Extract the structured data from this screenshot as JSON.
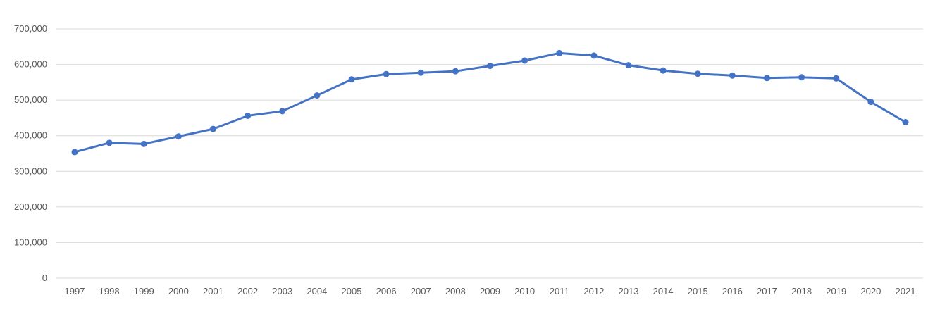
{
  "chart_data": {
    "type": "line",
    "title": "",
    "xlabel": "",
    "ylabel": "",
    "categories": [
      "1997",
      "1998",
      "1999",
      "2000",
      "2001",
      "2002",
      "2003",
      "2004",
      "2005",
      "2006",
      "2007",
      "2008",
      "2009",
      "2010",
      "2011",
      "2012",
      "2013",
      "2014",
      "2015",
      "2016",
      "2017",
      "2018",
      "2019",
      "2020",
      "2021"
    ],
    "series": [
      {
        "values": [
          354000,
          380000,
          377000,
          398000,
          419000,
          456000,
          469000,
          513000,
          558000,
          573000,
          577000,
          581000,
          596000,
          611000,
          632000,
          625000,
          598000,
          583000,
          574000,
          569000,
          562000,
          564000,
          561000,
          495000,
          438000
        ]
      }
    ],
    "ylim": [
      0,
      700000
    ],
    "yticks": [
      0,
      100000,
      200000,
      300000,
      400000,
      500000,
      600000,
      700000
    ],
    "ytick_labels": [
      "0",
      "100,000",
      "200,000",
      "300,000",
      "400,000",
      "500,000",
      "600,000",
      "700,000"
    ],
    "grid": true,
    "legend": "none",
    "colors": {
      "line": "#4472C4",
      "grid": "#D9D9D9",
      "text": "#595959"
    }
  }
}
